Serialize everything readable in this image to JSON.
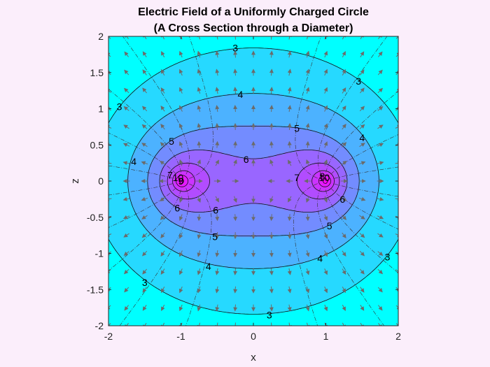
{
  "chart_data": {
    "type": "contour",
    "title_line1": "Electric Field of a Uniformly Charged Circle",
    "title_line2": "(A Cross Section through a Diameter)",
    "xlabel": "x",
    "ylabel": "z",
    "xlim": [
      -2,
      2
    ],
    "ylim": [
      -2,
      2
    ],
    "xticks": [
      "-2",
      "-1",
      "0",
      "1",
      "2"
    ],
    "yticks": [
      "2",
      "1.5",
      "1",
      "0.5",
      "0",
      "-0.5",
      "-1",
      "-1.5",
      "-2"
    ],
    "ring_x": [
      -1,
      1
    ],
    "contour_levels": [
      3,
      4,
      5,
      6,
      7,
      8,
      9,
      10
    ],
    "contour_labels": [
      {
        "text": "3",
        "x": -0.25,
        "y": 1.84
      },
      {
        "text": "3",
        "x": 1.45,
        "y": 1.38
      },
      {
        "text": "3",
        "x": -1.85,
        "y": 1.03
      },
      {
        "text": "3",
        "x": 1.85,
        "y": -1.05
      },
      {
        "text": "3",
        "x": -1.5,
        "y": -1.4
      },
      {
        "text": "3",
        "x": 0.22,
        "y": -1.85
      },
      {
        "text": "4",
        "x": -0.18,
        "y": 1.2
      },
      {
        "text": "4",
        "x": 1.5,
        "y": 0.6
      },
      {
        "text": "4",
        "x": -1.65,
        "y": 0.27
      },
      {
        "text": "4",
        "x": 0.92,
        "y": -1.07
      },
      {
        "text": "4",
        "x": -0.62,
        "y": -1.18
      },
      {
        "text": "5",
        "x": 0.6,
        "y": 0.73
      },
      {
        "text": "5",
        "x": -1.13,
        "y": 0.55
      },
      {
        "text": "5",
        "x": 1.05,
        "y": -0.62
      },
      {
        "text": "5",
        "x": -0.53,
        "y": -0.77
      },
      {
        "text": "6",
        "x": -0.1,
        "y": 0.3
      },
      {
        "text": "6",
        "x": 1.23,
        "y": -0.25
      },
      {
        "text": "6",
        "x": -1.05,
        "y": -0.37
      },
      {
        "text": "6",
        "x": -0.52,
        "y": -0.4
      },
      {
        "text": "7",
        "x": 0.6,
        "y": 0.05
      },
      {
        "text": "7",
        "x": -1.15,
        "y": 0.08
      },
      {
        "text": "10",
        "x": -1.04,
        "y": 0.05
      },
      {
        "text": "10",
        "x": 0.98,
        "y": 0.05
      },
      {
        "text": "9",
        "x": -1.0,
        "y": 0.0
      },
      {
        "text": "8",
        "x": 0.95,
        "y": 0.07
      }
    ],
    "colormap": [
      "#00ffff",
      "#9966ff",
      "#ff00ff"
    ],
    "grid": false
  }
}
